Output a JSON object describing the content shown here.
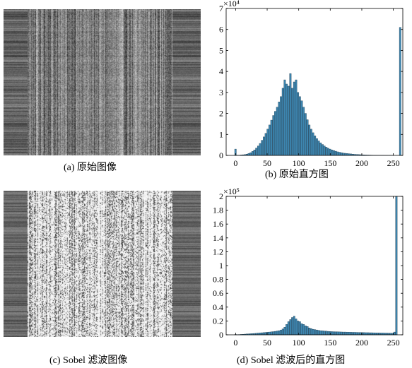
{
  "figure": {
    "panel_a": {
      "caption": "(a) 原始图像"
    },
    "panel_b": {
      "caption": "(b) 原始直方图"
    },
    "panel_c": {
      "caption": "(c) Sobel 滤波图像"
    },
    "panel_d": {
      "caption": "(d) Sobel 滤波后的直方图"
    }
  },
  "chart_data": [
    {
      "type": "bar",
      "panel": "b",
      "xlim": [
        -15,
        265
      ],
      "ylim": [
        0,
        7
      ],
      "xticks": [
        0,
        50,
        100,
        150,
        200,
        250
      ],
      "yticks": [
        0,
        1,
        2,
        3,
        4,
        5,
        6,
        7
      ],
      "y_multiplier_label": "×10⁴",
      "bar_color": "#3d86b0",
      "bin_width": 3,
      "x": [
        0,
        3,
        6,
        9,
        12,
        15,
        18,
        21,
        24,
        27,
        30,
        33,
        36,
        39,
        42,
        45,
        48,
        51,
        54,
        57,
        60,
        63,
        66,
        69,
        72,
        75,
        78,
        81,
        84,
        87,
        90,
        93,
        96,
        99,
        102,
        105,
        108,
        111,
        114,
        117,
        120,
        123,
        126,
        129,
        132,
        135,
        138,
        141,
        144,
        147,
        150,
        153,
        156,
        159,
        162,
        165,
        168,
        171,
        174,
        177,
        180,
        183,
        186,
        189,
        192,
        195,
        198,
        201,
        204,
        207,
        210,
        213,
        216,
        219,
        222,
        225,
        228,
        231,
        234,
        237,
        240,
        243,
        246,
        249,
        252,
        255,
        258,
        261
      ],
      "values": [
        0.3,
        0.01,
        0.01,
        0.02,
        0.03,
        0.04,
        0.06,
        0.09,
        0.13,
        0.19,
        0.26,
        0.35,
        0.45,
        0.57,
        0.72,
        0.88,
        1.05,
        1.25,
        1.45,
        1.68,
        1.9,
        2.1,
        2.3,
        2.55,
        2.8,
        3.2,
        3.6,
        3.4,
        3.3,
        3.9,
        3.2,
        3.5,
        3.6,
        3.0,
        2.8,
        2.6,
        2.3,
        2.0,
        1.7,
        1.45,
        1.25,
        1.08,
        0.93,
        0.8,
        0.69,
        0.6,
        0.52,
        0.45,
        0.39,
        0.34,
        0.3,
        0.26,
        0.23,
        0.2,
        0.17,
        0.15,
        0.13,
        0.11,
        0.1,
        0.09,
        0.08,
        0.07,
        0.06,
        0.05,
        0.045,
        0.04,
        0.035,
        0.03,
        0.025,
        0.02,
        0.018,
        0.015,
        0.012,
        0.01,
        0.008,
        0.006,
        0.005,
        0.004,
        0.003,
        0.002,
        0.002,
        0.001,
        0.001,
        0.001,
        0,
        0,
        0,
        6.1
      ]
    },
    {
      "type": "bar",
      "panel": "d",
      "xlim": [
        -15,
        265
      ],
      "ylim": [
        0,
        2
      ],
      "xticks": [
        0,
        50,
        100,
        150,
        200,
        250
      ],
      "yticks": [
        0,
        0.2,
        0.4,
        0.6,
        0.8,
        1,
        1.2,
        1.4,
        1.6,
        1.8,
        2
      ],
      "y_multiplier_label": "×10⁵",
      "bar_color": "#3d86b0",
      "bin_width": 3,
      "x": [
        0,
        3,
        6,
        9,
        12,
        15,
        18,
        21,
        24,
        27,
        30,
        33,
        36,
        39,
        42,
        45,
        48,
        51,
        54,
        57,
        60,
        63,
        66,
        69,
        72,
        75,
        78,
        81,
        84,
        87,
        90,
        93,
        96,
        99,
        102,
        105,
        108,
        111,
        114,
        117,
        120,
        123,
        126,
        129,
        132,
        135,
        138,
        141,
        144,
        147,
        150,
        153,
        156,
        159,
        162,
        165,
        168,
        171,
        174,
        177,
        180,
        183,
        186,
        189,
        192,
        195,
        198,
        201,
        204,
        207,
        210,
        213,
        216,
        219,
        222,
        225,
        228,
        231,
        234,
        237,
        240,
        243,
        246,
        249,
        252,
        255
      ],
      "values": [
        0.005,
        0.003,
        0.004,
        0.006,
        0.008,
        0.01,
        0.012,
        0.014,
        0.016,
        0.018,
        0.02,
        0.022,
        0.025,
        0.028,
        0.03,
        0.032,
        0.035,
        0.038,
        0.04,
        0.043,
        0.046,
        0.05,
        0.055,
        0.06,
        0.07,
        0.085,
        0.11,
        0.15,
        0.19,
        0.22,
        0.25,
        0.27,
        0.23,
        0.2,
        0.19,
        0.16,
        0.15,
        0.13,
        0.12,
        0.1,
        0.09,
        0.08,
        0.075,
        0.07,
        0.065,
        0.06,
        0.058,
        0.055,
        0.053,
        0.05,
        0.048,
        0.046,
        0.045,
        0.044,
        0.043,
        0.042,
        0.041,
        0.04,
        0.04,
        0.039,
        0.038,
        0.037,
        0.036,
        0.036,
        0.035,
        0.034,
        0.034,
        0.033,
        0.032,
        0.031,
        0.031,
        0.03,
        0.03,
        0.029,
        0.028,
        0.027,
        0.027,
        0.026,
        0.026,
        0.025,
        0.025,
        0.024,
        0.024,
        0.023,
        0.04,
        2.0
      ]
    }
  ]
}
